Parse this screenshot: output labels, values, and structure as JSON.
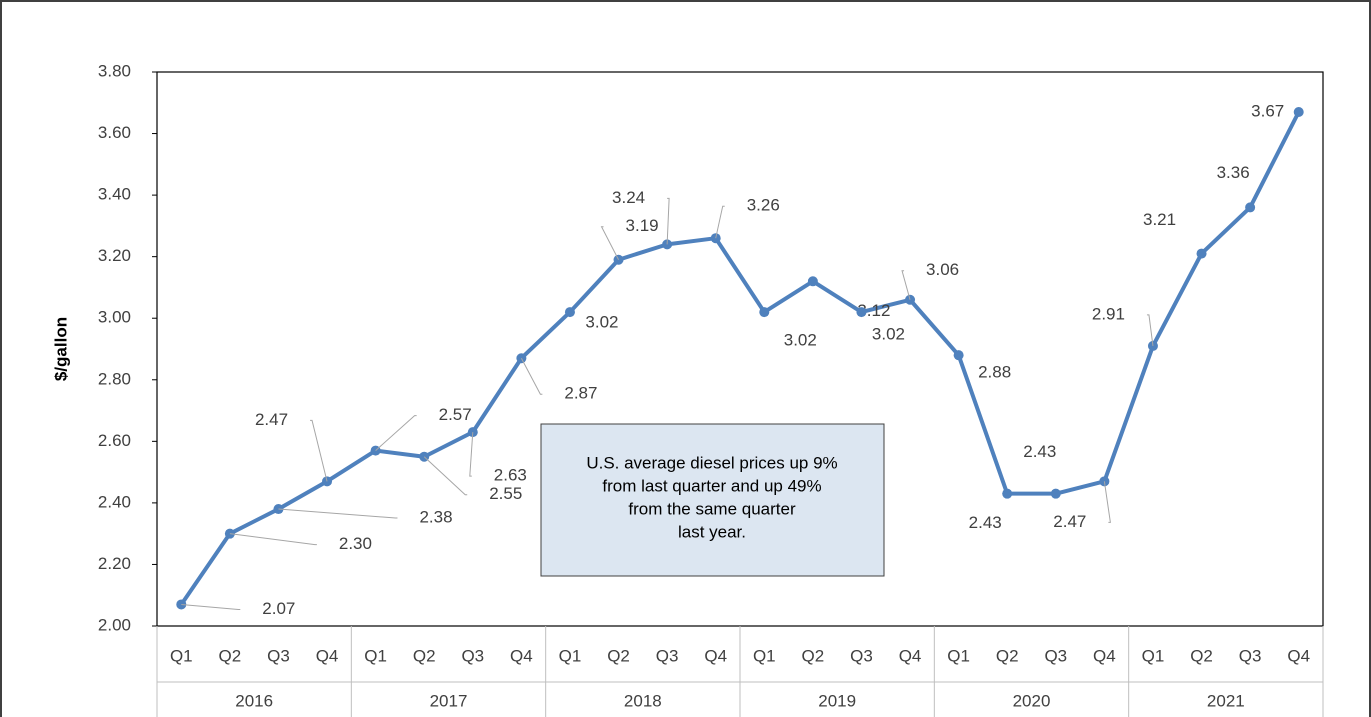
{
  "chart_data": {
    "type": "line",
    "y_label": "$/gallon",
    "categories": [
      "Q1",
      "Q2",
      "Q3",
      "Q4",
      "Q1",
      "Q2",
      "Q3",
      "Q4",
      "Q1",
      "Q2",
      "Q3",
      "Q4",
      "Q1",
      "Q2",
      "Q3",
      "Q4",
      "Q1",
      "Q2",
      "Q3",
      "Q4",
      "Q1",
      "Q2",
      "Q3",
      "Q4"
    ],
    "category_groups": [
      "2016",
      "2017",
      "2018",
      "2019",
      "2020",
      "2021"
    ],
    "series": [
      {
        "color": "#4f81bd",
        "values": [
          2.07,
          2.3,
          2.38,
          2.47,
          2.57,
          2.55,
          2.63,
          2.87,
          3.02,
          3.19,
          3.24,
          3.26,
          3.02,
          3.12,
          3.02,
          3.06,
          2.88,
          2.43,
          2.43,
          2.47,
          2.91,
          3.21,
          3.36,
          3.67
        ],
        "value_labels": [
          "2.07",
          "2.30",
          "2.38",
          "2.47",
          "2.57",
          "2.55",
          "2.63",
          "2.87",
          "3.02",
          "3.19",
          "3.24",
          "3.26",
          "3.02",
          "3.12",
          "3.02",
          "3.06",
          "2.88",
          "2.43",
          "2.43",
          "2.47",
          "2.91",
          "3.21",
          "3.36",
          "3.67"
        ]
      }
    ],
    "ylim": [
      2,
      3.8
    ],
    "yticks": [
      {
        "value": 2,
        "label": "2.00"
      },
      {
        "value": 2.2,
        "label": "2.20"
      },
      {
        "value": 2.4,
        "label": "2.40"
      },
      {
        "value": 2.6,
        "label": "2.60"
      },
      {
        "value": 2.8,
        "label": "2.80"
      },
      {
        "value": 3,
        "label": "3.00"
      },
      {
        "value": 3.2,
        "label": "3.20"
      },
      {
        "value": 3.4,
        "label": "3.40"
      },
      {
        "value": 3.6,
        "label": "3.60"
      },
      {
        "value": 3.8,
        "label": "3.80"
      }
    ],
    "annotation": [
      "U.S. average diesel prices up 9%",
      "from last quarter and up 49%",
      "from the same quarter",
      "last year."
    ]
  }
}
